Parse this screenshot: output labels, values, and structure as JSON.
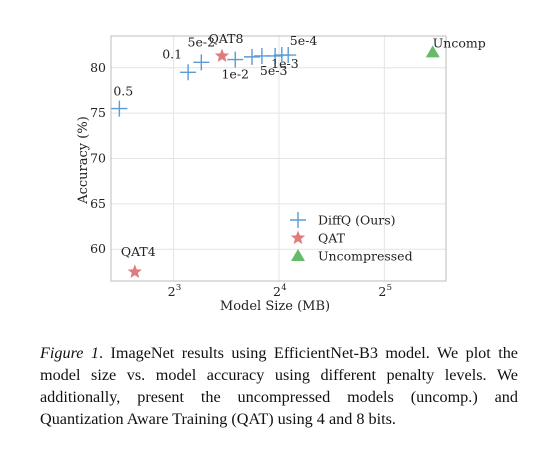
{
  "chart_data": {
    "type": "scatter",
    "title": "",
    "xlabel": "Model Size (MB)",
    "ylabel": "Accuracy (%)",
    "x_scale": "log2",
    "xlim": [
      5.3,
      48
    ],
    "ylim": [
      56.5,
      83.5
    ],
    "x_ticks": [
      {
        "value": 8,
        "base": "2",
        "exp": "3"
      },
      {
        "value": 16,
        "base": "2",
        "exp": "4"
      },
      {
        "value": 32,
        "base": "2",
        "exp": "5"
      }
    ],
    "y_ticks": [
      60,
      65,
      70,
      75,
      80
    ],
    "grid": true,
    "legend_position": "lower-right",
    "series": [
      {
        "name": "DiffQ (Ours)",
        "marker": "plus",
        "color": "#5b9bd5",
        "points": [
          {
            "x": 5.6,
            "y": 75.5,
            "label": "0.5"
          },
          {
            "x": 8.8,
            "y": 79.5,
            "label": "0.1"
          },
          {
            "x": 9.6,
            "y": 80.6,
            "label": "5e-2"
          },
          {
            "x": 12.0,
            "y": 80.9,
            "label": "1e-2"
          },
          {
            "x": 13.4,
            "y": 81.2,
            "label": ""
          },
          {
            "x": 14.3,
            "y": 81.3,
            "label": "5e-3"
          },
          {
            "x": 15.6,
            "y": 81.3,
            "label": "1e-3"
          },
          {
            "x": 16.3,
            "y": 81.4,
            "label": "5e-4"
          },
          {
            "x": 17.0,
            "y": 81.4,
            "label": ""
          }
        ]
      },
      {
        "name": "QAT",
        "marker": "star",
        "color": "#e07b7b",
        "points": [
          {
            "x": 6.2,
            "y": 57.5,
            "label": "QAT4"
          },
          {
            "x": 11.0,
            "y": 81.3,
            "label": "QAT8"
          }
        ]
      },
      {
        "name": "Uncompressed",
        "marker": "triangle",
        "color": "#66bb6a",
        "points": [
          {
            "x": 44.0,
            "y": 81.7,
            "label": "Uncomp"
          }
        ]
      }
    ]
  },
  "caption": {
    "lead": "Figure 1",
    "text": ". ImageNet results using EfficientNet-B3 model. We plot the model size vs. model accuracy using different penalty levels. We additionally, present the uncompressed models (uncomp.) and Quantization Aware Training (QAT) using 4 and 8 bits."
  }
}
